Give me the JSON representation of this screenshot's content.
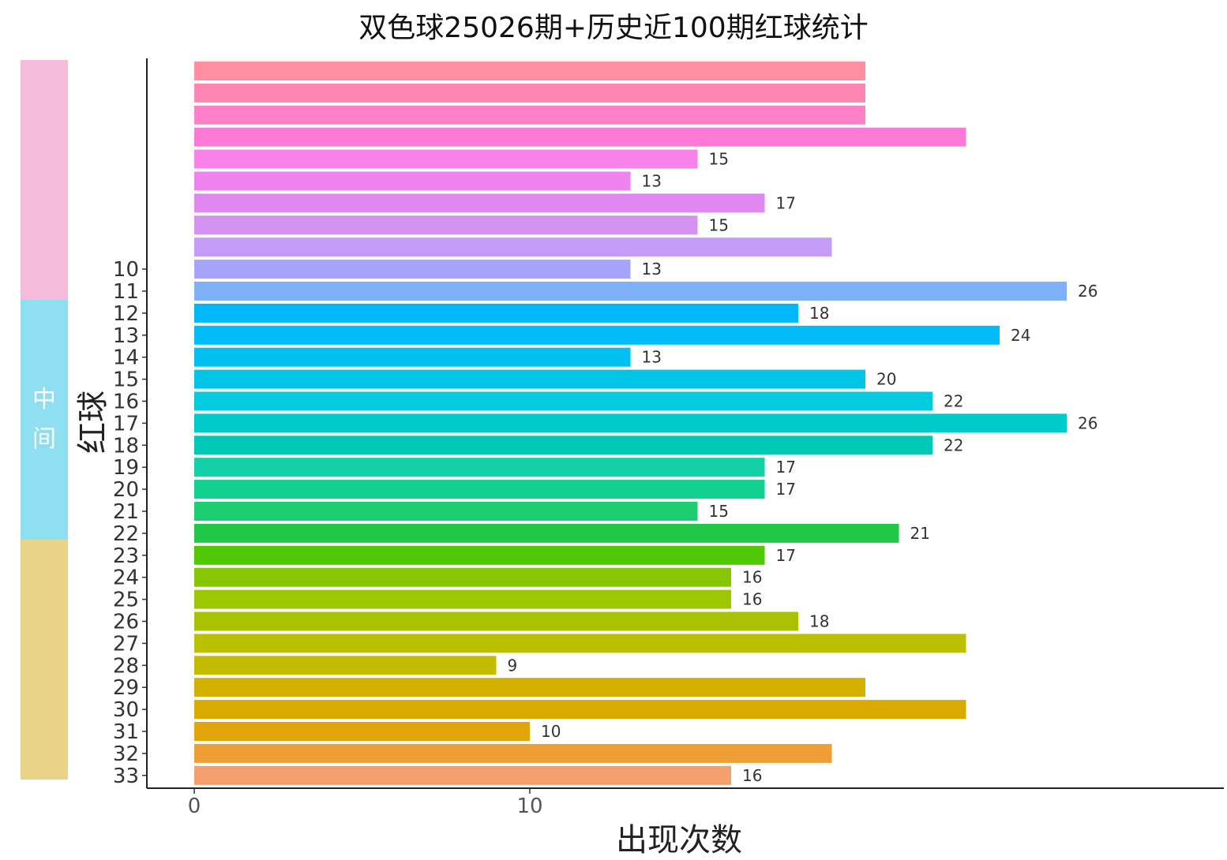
{
  "chart_data": {
    "type": "bar",
    "orientation": "horizontal",
    "title": "双色球25026期+历史近100期红球统计",
    "xlabel": "出现次数",
    "ylabel": "红球",
    "xlim": [
      0,
      31
    ],
    "x_ticks": [
      "0",
      "10"
    ],
    "categories": [
      "10",
      "11",
      "12",
      "13",
      "14",
      "15",
      "16",
      "17",
      "18",
      "19",
      "20",
      "21",
      "22",
      "23",
      "24",
      "25",
      "26",
      "27",
      "28",
      "29",
      "30",
      "31",
      "32",
      "33"
    ],
    "values": [
      13,
      26,
      18,
      24,
      13,
      20,
      22,
      26,
      22,
      17,
      17,
      15,
      21,
      17,
      16,
      16,
      18,
      23,
      9,
      20,
      23,
      10,
      19,
      16
    ],
    "data_labels": [
      "13",
      "26",
      "18",
      "24",
      "13",
      "20",
      "22",
      "26",
      "22",
      "17",
      "17",
      "15",
      "21",
      "17",
      "16",
      "16",
      "18",
      "",
      "9",
      "",
      "",
      "10",
      "",
      "16"
    ],
    "extra_bars": [
      20,
      20,
      20,
      23,
      15,
      13,
      17,
      15,
      19
    ],
    "extra_labels": [
      "",
      "",
      "",
      "",
      "15",
      "13",
      "17",
      "15",
      ""
    ],
    "colors": [
      "#ff8ea0",
      "#ff86b2",
      "#ff80c6",
      "#fc7ad6",
      "#f883e8",
      "#ef84ee",
      "#df88f0",
      "#d492f1",
      "#c49cf8",
      "#a7a3fb",
      "#7fb1f9",
      "#01b7f7",
      "#01bcf6",
      "#00c0f2",
      "#00c5e6",
      "#01cbdc",
      "#00cbca",
      "#00c8b6",
      "#12d1a6",
      "#12d08f",
      "#1cce70",
      "#21c847",
      "#50c806",
      "#86c603",
      "#9cc701",
      "#a8c102",
      "#bbc100",
      "#c5bc01",
      "#d2b102",
      "#dbaa00",
      "#e2a508",
      "#ee9e35",
      "#f59e6e",
      "#f98f85"
    ],
    "legend": "none",
    "grid": false
  },
  "bands": [
    {
      "label": "",
      "color": "#f6bbd9"
    },
    {
      "label": "中 间",
      "color": "#8edff0"
    },
    {
      "label": "",
      "color": "#e8d386"
    }
  ]
}
